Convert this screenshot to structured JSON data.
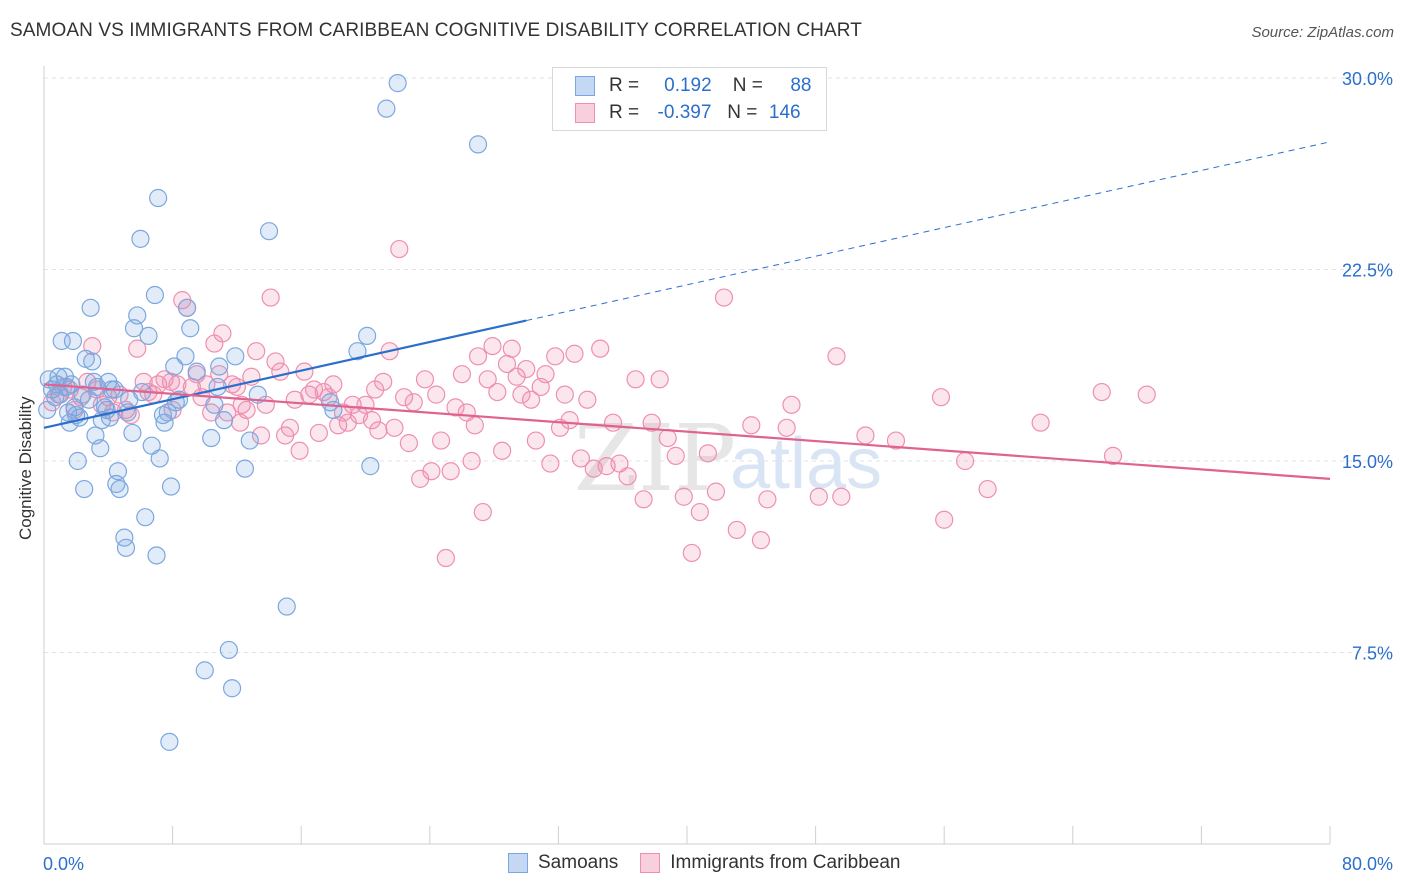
{
  "title": "SAMOAN VS IMMIGRANTS FROM CARIBBEAN COGNITIVE DISABILITY CORRELATION CHART",
  "source": "Source: ZipAtlas.com",
  "watermark": {
    "zip": "ZIP",
    "atlas": "atlas"
  },
  "legend": {
    "rows": [
      {
        "r_label": "R =",
        "r_value": "0.192",
        "n_label": "N =",
        "n_value": "88",
        "color": "#7ba7e0"
      },
      {
        "r_label": "R =",
        "r_value": "-0.397",
        "n_label": "N =",
        "n_value": "146",
        "color": "#ef8fb0"
      }
    ]
  },
  "bottom_legend": [
    {
      "label": "Samoans",
      "color": "#7ba7e0"
    },
    {
      "label": "Immigrants from Caribbean",
      "color": "#ef8fb0"
    }
  ],
  "chart_data": {
    "type": "scatter",
    "xlabel": "",
    "ylabel": "Cognitive Disability",
    "xlim": [
      0,
      80
    ],
    "ylim": [
      0,
      30
    ],
    "y_ticks": [
      7.5,
      15.0,
      22.5,
      30.0
    ],
    "y_tick_labels": [
      "7.5%",
      "15.0%",
      "22.5%",
      "30.0%"
    ],
    "x_tick_labels": {
      "min": "0.0%",
      "max": "80.0%"
    },
    "grid": true,
    "series": [
      {
        "name": "Samoans",
        "color": "#7ba7e0",
        "line_color": "#2b6fcc",
        "trend": {
          "x0": 0,
          "y0": 16.3,
          "x_solid_end": 30,
          "y_solid_end": 20.5,
          "x_end": 80,
          "y_end": 27.5
        },
        "points": [
          [
            0.3,
            18.2
          ],
          [
            0.5,
            17.8
          ],
          [
            0.7,
            17.5
          ],
          [
            0.8,
            18.0
          ],
          [
            1.0,
            17.6
          ],
          [
            1.1,
            19.7
          ],
          [
            1.3,
            18.3
          ],
          [
            1.4,
            17.9
          ],
          [
            1.5,
            16.9
          ],
          [
            1.6,
            16.5
          ],
          [
            1.7,
            18.0
          ],
          [
            1.8,
            19.7
          ],
          [
            2.0,
            16.8
          ],
          [
            2.1,
            15.0
          ],
          [
            2.4,
            17.6
          ],
          [
            2.5,
            13.9
          ],
          [
            2.6,
            19.0
          ],
          [
            2.8,
            17.4
          ],
          [
            2.9,
            21.0
          ],
          [
            3.1,
            18.1
          ],
          [
            3.2,
            16.0
          ],
          [
            3.3,
            17.9
          ],
          [
            3.5,
            15.5
          ],
          [
            3.6,
            16.6
          ],
          [
            3.8,
            17.1
          ],
          [
            3.9,
            17.0
          ],
          [
            4.1,
            16.7
          ],
          [
            4.2,
            17.8
          ],
          [
            4.4,
            17.8
          ],
          [
            4.5,
            14.1
          ],
          [
            4.6,
            14.6
          ],
          [
            4.7,
            13.9
          ],
          [
            5.0,
            12.0
          ],
          [
            5.1,
            11.6
          ],
          [
            5.3,
            17.4
          ],
          [
            5.5,
            16.1
          ],
          [
            5.6,
            20.2
          ],
          [
            5.8,
            20.7
          ],
          [
            6.0,
            23.7
          ],
          [
            6.3,
            12.8
          ],
          [
            6.5,
            19.9
          ],
          [
            6.7,
            15.6
          ],
          [
            6.9,
            21.5
          ],
          [
            7.0,
            11.3
          ],
          [
            7.1,
            25.3
          ],
          [
            7.2,
            15.1
          ],
          [
            7.5,
            16.5
          ],
          [
            7.7,
            16.9
          ],
          [
            7.8,
            4.0
          ],
          [
            7.9,
            14.0
          ],
          [
            8.1,
            18.7
          ],
          [
            8.2,
            17.3
          ],
          [
            8.4,
            17.4
          ],
          [
            8.8,
            19.1
          ],
          [
            8.9,
            21.0
          ],
          [
            9.1,
            20.2
          ],
          [
            10.0,
            6.8
          ],
          [
            10.4,
            15.9
          ],
          [
            10.6,
            17.2
          ],
          [
            10.9,
            18.7
          ],
          [
            11.2,
            16.6
          ],
          [
            11.5,
            7.6
          ],
          [
            11.7,
            6.1
          ],
          [
            11.9,
            19.1
          ],
          [
            12.5,
            14.7
          ],
          [
            12.8,
            15.8
          ],
          [
            13.3,
            17.6
          ],
          [
            14.0,
            24.0
          ],
          [
            15.1,
            9.3
          ],
          [
            17.8,
            17.3
          ],
          [
            18.0,
            17.0
          ],
          [
            19.5,
            19.3
          ],
          [
            20.1,
            19.9
          ],
          [
            20.3,
            14.8
          ],
          [
            21.3,
            28.8
          ],
          [
            22.0,
            29.8
          ],
          [
            27.0,
            27.4
          ],
          [
            0.2,
            17.0
          ],
          [
            0.9,
            18.3
          ],
          [
            1.9,
            17.1
          ],
          [
            2.2,
            16.7
          ],
          [
            3.0,
            18.9
          ],
          [
            4.0,
            18.1
          ],
          [
            5.2,
            16.9
          ],
          [
            6.1,
            17.7
          ],
          [
            7.4,
            16.8
          ],
          [
            9.5,
            18.5
          ],
          [
            10.8,
            17.9
          ]
        ]
      },
      {
        "name": "Immigrants from Caribbean",
        "color": "#ef8fb0",
        "line_color": "#e0628f",
        "trend": {
          "x0": 0,
          "y0": 18.0,
          "x_end": 80,
          "y_end": 14.3
        },
        "points": [
          [
            0.5,
            17.3
          ],
          [
            0.9,
            17.6
          ],
          [
            1.2,
            17.9
          ],
          [
            1.6,
            17.8
          ],
          [
            1.9,
            17.0
          ],
          [
            2.3,
            17.5
          ],
          [
            2.7,
            18.1
          ],
          [
            3.0,
            19.5
          ],
          [
            3.3,
            17.8
          ],
          [
            3.6,
            17.2
          ],
          [
            4.0,
            17.5
          ],
          [
            4.3,
            16.9
          ],
          [
            4.7,
            17.6
          ],
          [
            5.1,
            17.0
          ],
          [
            5.4,
            16.8
          ],
          [
            5.8,
            19.4
          ],
          [
            6.2,
            18.1
          ],
          [
            6.5,
            17.7
          ],
          [
            6.8,
            17.6
          ],
          [
            7.1,
            18.0
          ],
          [
            7.5,
            18.2
          ],
          [
            7.9,
            18.1
          ],
          [
            8.3,
            18.0
          ],
          [
            8.6,
            21.3
          ],
          [
            8.9,
            21.0
          ],
          [
            9.2,
            17.9
          ],
          [
            9.5,
            18.4
          ],
          [
            9.8,
            17.5
          ],
          [
            10.1,
            18.0
          ],
          [
            10.4,
            16.9
          ],
          [
            10.6,
            19.6
          ],
          [
            10.9,
            18.4
          ],
          [
            11.1,
            20.0
          ],
          [
            11.4,
            16.9
          ],
          [
            11.7,
            18.0
          ],
          [
            12.0,
            17.9
          ],
          [
            12.3,
            17.2
          ],
          [
            12.6,
            17.0
          ],
          [
            12.9,
            18.3
          ],
          [
            13.2,
            19.3
          ],
          [
            13.5,
            16.0
          ],
          [
            13.8,
            17.2
          ],
          [
            14.1,
            21.4
          ],
          [
            14.4,
            18.9
          ],
          [
            14.7,
            18.5
          ],
          [
            15.0,
            16.0
          ],
          [
            15.3,
            16.3
          ],
          [
            15.6,
            17.4
          ],
          [
            15.9,
            15.4
          ],
          [
            16.2,
            18.5
          ],
          [
            16.5,
            17.6
          ],
          [
            16.8,
            17.8
          ],
          [
            17.1,
            16.1
          ],
          [
            17.4,
            17.7
          ],
          [
            17.7,
            17.5
          ],
          [
            18.0,
            18.0
          ],
          [
            18.3,
            16.4
          ],
          [
            18.6,
            16.9
          ],
          [
            18.9,
            16.5
          ],
          [
            19.2,
            17.2
          ],
          [
            19.6,
            16.8
          ],
          [
            20.0,
            17.2
          ],
          [
            20.4,
            16.6
          ],
          [
            20.8,
            16.2
          ],
          [
            21.1,
            18.1
          ],
          [
            21.5,
            19.3
          ],
          [
            21.8,
            16.3
          ],
          [
            22.1,
            23.3
          ],
          [
            22.4,
            17.5
          ],
          [
            22.7,
            15.7
          ],
          [
            23.0,
            17.3
          ],
          [
            23.4,
            14.3
          ],
          [
            23.7,
            18.2
          ],
          [
            24.1,
            14.6
          ],
          [
            24.4,
            17.6
          ],
          [
            24.7,
            15.8
          ],
          [
            25.0,
            11.2
          ],
          [
            25.3,
            14.6
          ],
          [
            25.6,
            17.1
          ],
          [
            26.0,
            18.4
          ],
          [
            26.3,
            16.9
          ],
          [
            26.6,
            15.0
          ],
          [
            27.0,
            19.1
          ],
          [
            27.3,
            13.0
          ],
          [
            27.6,
            18.2
          ],
          [
            27.9,
            19.5
          ],
          [
            28.2,
            17.7
          ],
          [
            28.5,
            15.4
          ],
          [
            28.8,
            18.8
          ],
          [
            29.1,
            19.4
          ],
          [
            29.4,
            18.3
          ],
          [
            29.7,
            17.6
          ],
          [
            30.0,
            18.6
          ],
          [
            30.3,
            17.4
          ],
          [
            30.6,
            15.8
          ],
          [
            30.9,
            17.9
          ],
          [
            31.2,
            18.4
          ],
          [
            31.5,
            14.9
          ],
          [
            31.8,
            19.1
          ],
          [
            32.1,
            16.3
          ],
          [
            32.4,
            17.6
          ],
          [
            32.7,
            16.6
          ],
          [
            33.0,
            19.2
          ],
          [
            33.4,
            15.1
          ],
          [
            33.8,
            17.4
          ],
          [
            34.2,
            14.7
          ],
          [
            34.6,
            19.4
          ],
          [
            35.0,
            14.8
          ],
          [
            35.4,
            16.5
          ],
          [
            35.8,
            14.9
          ],
          [
            36.3,
            14.4
          ],
          [
            36.8,
            18.2
          ],
          [
            37.3,
            13.5
          ],
          [
            37.8,
            16.5
          ],
          [
            38.3,
            18.2
          ],
          [
            38.8,
            15.9
          ],
          [
            39.3,
            15.2
          ],
          [
            39.8,
            13.6
          ],
          [
            40.3,
            11.4
          ],
          [
            40.8,
            13.0
          ],
          [
            41.3,
            15.3
          ],
          [
            41.8,
            13.8
          ],
          [
            42.3,
            21.4
          ],
          [
            43.1,
            12.3
          ],
          [
            44.0,
            16.4
          ],
          [
            44.6,
            11.9
          ],
          [
            45.0,
            13.5
          ],
          [
            46.2,
            16.3
          ],
          [
            46.5,
            17.2
          ],
          [
            48.2,
            13.6
          ],
          [
            49.3,
            19.1
          ],
          [
            49.6,
            13.6
          ],
          [
            51.1,
            16.0
          ],
          [
            53.0,
            15.8
          ],
          [
            55.8,
            17.5
          ],
          [
            56.0,
            12.7
          ],
          [
            57.3,
            15.0
          ],
          [
            58.7,
            13.9
          ],
          [
            62.0,
            16.5
          ],
          [
            65.8,
            17.7
          ],
          [
            66.5,
            15.2
          ],
          [
            68.6,
            17.6
          ],
          [
            8.0,
            17.0
          ],
          [
            12.2,
            16.5
          ],
          [
            20.6,
            17.8
          ],
          [
            26.8,
            16.4
          ]
        ]
      }
    ]
  }
}
